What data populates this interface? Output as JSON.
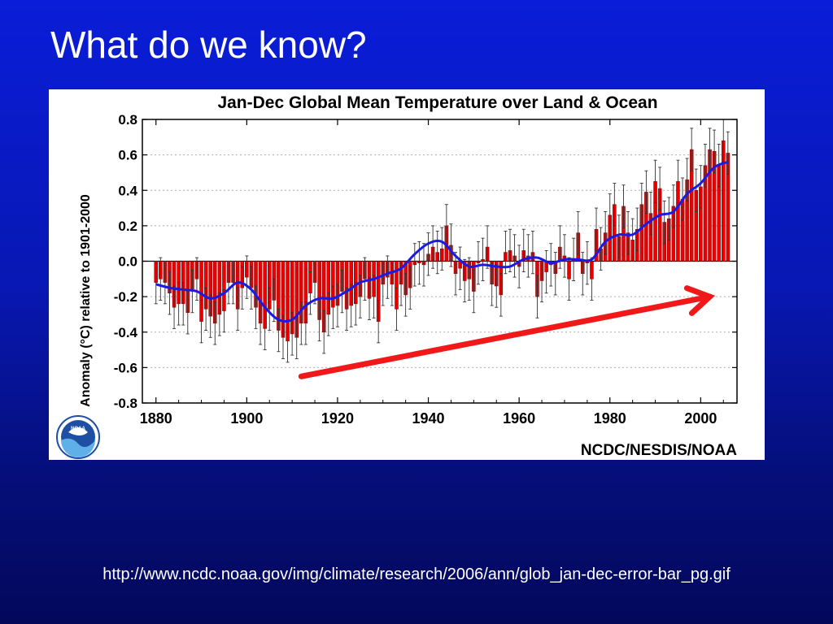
{
  "slide": {
    "title": "What do we know?",
    "source_url": "http://www.ncdc.noaa.gov/img/climate/research/2006/ann/glob_jan-dec-error-bar_pg.gif"
  },
  "figure": {
    "credit": "NCDC/NESDIS/NOAA",
    "logo_text": "NOAA"
  },
  "colors": {
    "background": "#0A1DD8",
    "bar_fill": "#EE0000",
    "bar_outline": "#7A0000",
    "smooth_line": "#1A1AE6",
    "trend_arrow": "#F01818",
    "error_bar": "#333333",
    "grid": "#B0B0B0"
  },
  "chart_data": {
    "type": "bar",
    "title": "Jan-Dec Global Mean Temperature over Land & Ocean",
    "xlabel": "",
    "ylabel": "Anomaly (°C) relative to 1901-2000",
    "xlim": [
      1877,
      2008
    ],
    "ylim": [
      -0.8,
      0.8
    ],
    "x_ticks": [
      1880,
      1900,
      1920,
      1940,
      1960,
      1980,
      2000
    ],
    "x_tick_labels": [
      "1880",
      "1900",
      "1920",
      "1940",
      "1960",
      "1980",
      "2000"
    ],
    "y_ticks": [
      0.8,
      0.6,
      0.4,
      0.2,
      0.0,
      -0.2,
      -0.4,
      -0.6,
      -0.8
    ],
    "y_tick_labels": [
      "0.8",
      "0.6",
      "0.4",
      "0.2",
      "0.0",
      "-0.2",
      "-0.4",
      "-0.6",
      "-0.8"
    ],
    "grid": "horizontal dotted",
    "first_year": 1880,
    "years": [
      1880,
      1881,
      1882,
      1883,
      1884,
      1885,
      1886,
      1887,
      1888,
      1889,
      1890,
      1891,
      1892,
      1893,
      1894,
      1895,
      1896,
      1897,
      1898,
      1899,
      1900,
      1901,
      1902,
      1903,
      1904,
      1905,
      1906,
      1907,
      1908,
      1909,
      1910,
      1911,
      1912,
      1913,
      1914,
      1915,
      1916,
      1917,
      1918,
      1919,
      1920,
      1921,
      1922,
      1923,
      1924,
      1925,
      1926,
      1927,
      1928,
      1929,
      1930,
      1931,
      1932,
      1933,
      1934,
      1935,
      1936,
      1937,
      1938,
      1939,
      1940,
      1941,
      1942,
      1943,
      1944,
      1945,
      1946,
      1947,
      1948,
      1949,
      1950,
      1951,
      1952,
      1953,
      1954,
      1955,
      1956,
      1957,
      1958,
      1959,
      1960,
      1961,
      1962,
      1963,
      1964,
      1965,
      1966,
      1967,
      1968,
      1969,
      1970,
      1971,
      1972,
      1973,
      1974,
      1975,
      1976,
      1977,
      1978,
      1979,
      1980,
      1981,
      1982,
      1983,
      1984,
      1985,
      1986,
      1987,
      1988,
      1989,
      1990,
      1991,
      1992,
      1993,
      1994,
      1995,
      1996,
      1997,
      1998,
      1999,
      2000,
      2001,
      2002,
      2003,
      2004,
      2005,
      2006
    ],
    "values": [
      -0.12,
      -0.1,
      -0.12,
      -0.18,
      -0.26,
      -0.24,
      -0.24,
      -0.29,
      -0.17,
      -0.1,
      -0.34,
      -0.27,
      -0.31,
      -0.35,
      -0.3,
      -0.28,
      -0.12,
      -0.12,
      -0.27,
      -0.15,
      -0.09,
      -0.15,
      -0.26,
      -0.35,
      -0.38,
      -0.27,
      -0.22,
      -0.39,
      -0.43,
      -0.45,
      -0.41,
      -0.43,
      -0.35,
      -0.35,
      -0.18,
      -0.12,
      -0.33,
      -0.4,
      -0.3,
      -0.26,
      -0.25,
      -0.17,
      -0.27,
      -0.25,
      -0.24,
      -0.2,
      -0.1,
      -0.21,
      -0.2,
      -0.34,
      -0.13,
      -0.09,
      -0.13,
      -0.27,
      -0.13,
      -0.19,
      -0.15,
      -0.02,
      -0.01,
      -0.02,
      0.04,
      0.08,
      0.05,
      0.07,
      0.2,
      0.09,
      -0.07,
      -0.04,
      -0.11,
      -0.1,
      -0.17,
      -0.01,
      0.01,
      0.08,
      -0.13,
      -0.14,
      -0.19,
      0.05,
      0.06,
      0.03,
      -0.03,
      0.06,
      0.03,
      0.05,
      -0.2,
      -0.11,
      -0.06,
      -0.02,
      -0.07,
      0.08,
      0.03,
      -0.1,
      0.01,
      0.16,
      -0.07,
      -0.01,
      -0.1,
      0.18,
      0.07,
      0.16,
      0.26,
      0.32,
      0.14,
      0.31,
      0.16,
      0.12,
      0.18,
      0.32,
      0.39,
      0.27,
      0.45,
      0.41,
      0.22,
      0.24,
      0.31,
      0.45,
      0.35,
      0.46,
      0.63,
      0.4,
      0.42,
      0.54,
      0.63,
      0.62,
      0.54,
      0.68,
      0.61
    ],
    "error_bar_halfwidth": 0.12,
    "smoothed": {
      "name": "",
      "x": [
        1880,
        1883,
        1886,
        1889,
        1892,
        1895,
        1898,
        1901,
        1904,
        1907,
        1910,
        1913,
        1916,
        1919,
        1922,
        1925,
        1928,
        1931,
        1934,
        1937,
        1940,
        1943,
        1946,
        1949,
        1952,
        1955,
        1958,
        1961,
        1964,
        1967,
        1970,
        1973,
        1976,
        1979,
        1982,
        1985,
        1988,
        1991,
        1994,
        1997,
        2000,
        2003,
        2006
      ],
      "y": [
        -0.13,
        -0.15,
        -0.16,
        -0.17,
        -0.21,
        -0.18,
        -0.12,
        -0.16,
        -0.26,
        -0.33,
        -0.33,
        -0.25,
        -0.21,
        -0.21,
        -0.17,
        -0.12,
        -0.1,
        -0.07,
        -0.04,
        0.04,
        0.1,
        0.11,
        0.03,
        -0.03,
        -0.02,
        -0.03,
        -0.03,
        0.01,
        0.02,
        -0.01,
        0.01,
        0.01,
        0.01,
        0.11,
        0.15,
        0.15,
        0.21,
        0.26,
        0.28,
        0.38,
        0.44,
        0.53,
        0.56
      ]
    },
    "annotations": [
      {
        "type": "arrow",
        "from": [
          1912,
          -0.65
        ],
        "to": [
          2002,
          -0.2
        ]
      }
    ]
  }
}
